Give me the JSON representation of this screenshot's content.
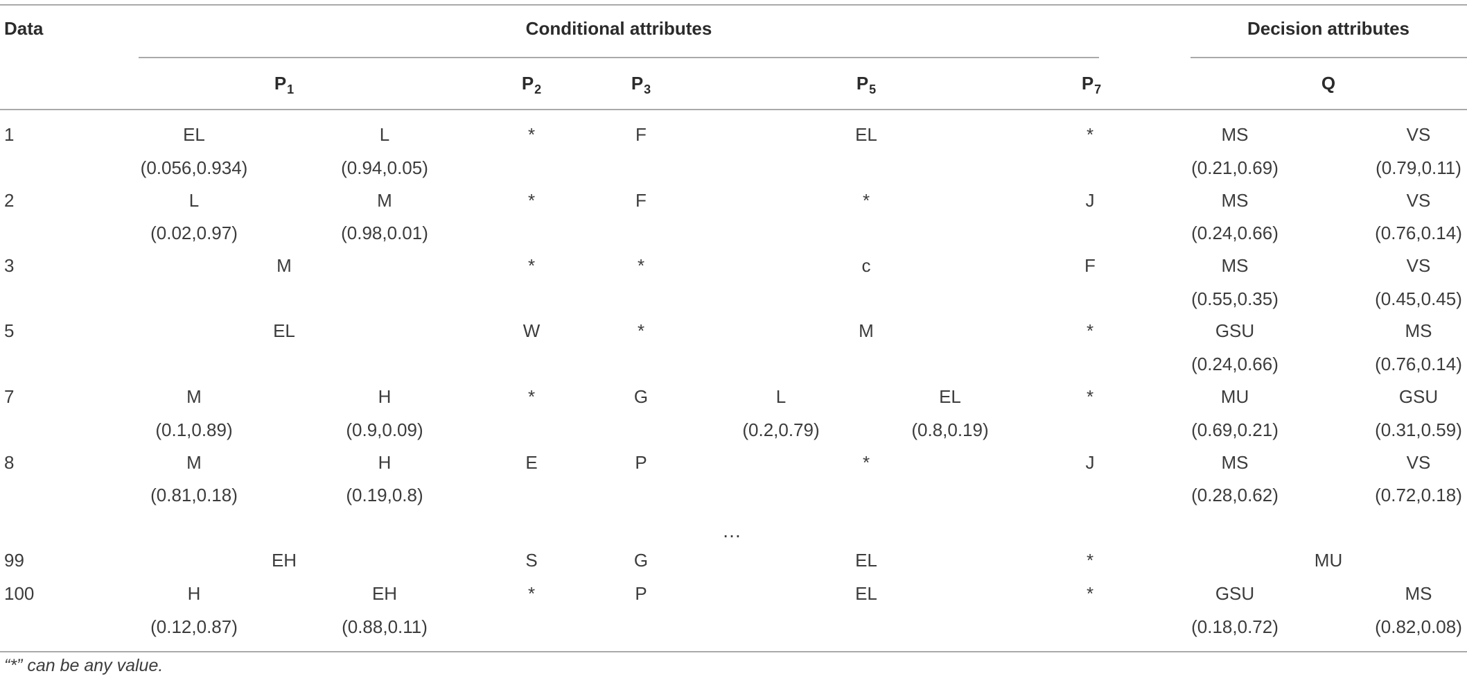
{
  "header": {
    "data": "Data",
    "conditional": "Conditional attributes",
    "decision": "Decision attributes",
    "cols": [
      {
        "base": "P",
        "sub": "1"
      },
      {
        "base": "P",
        "sub": "2"
      },
      {
        "base": "P",
        "sub": "3"
      },
      {
        "base": "P",
        "sub": "5"
      },
      {
        "base": "P",
        "sub": "7"
      },
      {
        "base": "Q",
        "sub": ""
      }
    ]
  },
  "rows": [
    {
      "id": "1",
      "p1": {
        "a": "EL",
        "a_val": "(0.056,0.934)",
        "b": "L",
        "b_val": "(0.94,0.05)"
      },
      "p2": "*",
      "p3": "F",
      "p5": {
        "single": "EL"
      },
      "p7": "*",
      "q": {
        "a": "MS",
        "a_val": "(0.21,0.69)",
        "b": "VS",
        "b_val": "(0.79,0.11)"
      }
    },
    {
      "id": "2",
      "p1": {
        "a": "L",
        "a_val": "(0.02,0.97)",
        "b": "M",
        "b_val": "(0.98,0.01)"
      },
      "p2": "*",
      "p3": "F",
      "p5": {
        "single": "*"
      },
      "p7": "J",
      "q": {
        "a": "MS",
        "a_val": "(0.24,0.66)",
        "b": "VS",
        "b_val": "(0.76,0.14)"
      }
    },
    {
      "id": "3",
      "p1": {
        "single": "M"
      },
      "p2": "*",
      "p3": "*",
      "p5": {
        "single": "c"
      },
      "p7": "F",
      "q": {
        "a": "MS",
        "a_val": "(0.55,0.35)",
        "b": "VS",
        "b_val": "(0.45,0.45)"
      }
    },
    {
      "id": "5",
      "p1": {
        "single": "EL"
      },
      "p2": "W",
      "p3": "*",
      "p5": {
        "single": "M"
      },
      "p7": "*",
      "q": {
        "a": "GSU",
        "a_val": "(0.24,0.66)",
        "b": "MS",
        "b_val": "(0.76,0.14)"
      }
    },
    {
      "id": "7",
      "p1": {
        "a": "M",
        "a_val": "(0.1,0.89)",
        "b": "H",
        "b_val": "(0.9,0.09)"
      },
      "p2": "*",
      "p3": "G",
      "p5": {
        "a": "L",
        "a_val": "(0.2,0.79)",
        "b": "EL",
        "b_val": "(0.8,0.19)"
      },
      "p7": "*",
      "q": {
        "a": "MU",
        "a_val": "(0.69,0.21)",
        "b": "GSU",
        "b_val": "(0.31,0.59)"
      }
    },
    {
      "id": "8",
      "p1": {
        "a": "M",
        "a_val": "(0.81,0.18)",
        "b": "H",
        "b_val": "(0.19,0.8)"
      },
      "p2": "E",
      "p3": "P",
      "p5": {
        "single": "*"
      },
      "p7": "J",
      "q": {
        "a": "MS",
        "a_val": "(0.28,0.62)",
        "b": "VS",
        "b_val": "(0.72,0.18)"
      }
    },
    {
      "id": "99",
      "p1": {
        "single": "EH"
      },
      "p2": "S",
      "p3": "G",
      "p5": {
        "single": "EL"
      },
      "p7": "*",
      "q": {
        "single": "MU"
      }
    },
    {
      "id": "100",
      "p1": {
        "a": "H",
        "a_val": "(0.12,0.87)",
        "b": "EH",
        "b_val": "(0.88,0.11)"
      },
      "p2": "*",
      "p3": "P",
      "p5": {
        "single": "EL"
      },
      "p7": "*",
      "q": {
        "a": "GSU",
        "a_val": "(0.18,0.72)",
        "b": "MS",
        "b_val": "(0.82,0.08)"
      }
    }
  ],
  "ellipsis": "…",
  "footnote": "“*” can be any value."
}
